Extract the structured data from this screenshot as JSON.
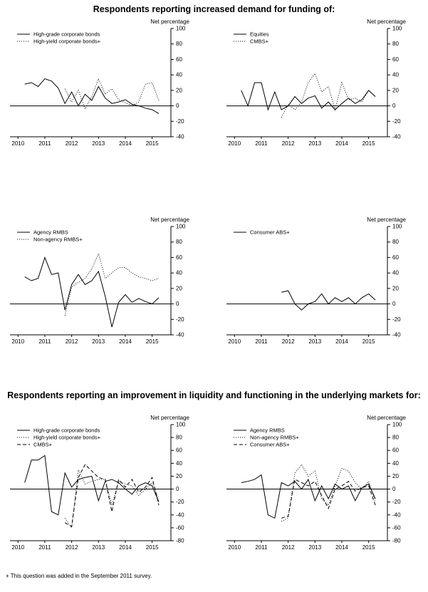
{
  "page": {
    "title_demand": "Respondents reporting increased demand for funding of:",
    "title_liquidity": "Respondents reporting an improvement in liquidity and functioning in the underlying markets for:",
    "footnote": "+ This question was added in the September 2011 survey."
  },
  "chart_data": [
    {
      "type": "line",
      "ylabel": "Net percentage",
      "ylim": [
        -40,
        100
      ],
      "yticks": [
        100,
        80,
        60,
        40,
        20,
        0,
        -20,
        -40
      ],
      "xlim": [
        2009.7,
        2015.7
      ],
      "xticks": [
        2010,
        2011,
        2012,
        2013,
        2014,
        2015
      ],
      "legend_position": "top-left",
      "series": [
        {
          "name": "High-grade corporate bonds",
          "style": "solid",
          "x": [
            2010.25,
            2010.5,
            2010.75,
            2011,
            2011.25,
            2011.5,
            2011.75,
            2012,
            2012.25,
            2012.5,
            2012.75,
            2013,
            2013.25,
            2013.5,
            2013.75,
            2014,
            2014.25,
            2014.5,
            2014.75,
            2015,
            2015.25
          ],
          "y": [
            28,
            30,
            25,
            35,
            32,
            23,
            3,
            18,
            0,
            15,
            7,
            25,
            10,
            3,
            5,
            8,
            2,
            0,
            -3,
            -5,
            -10
          ]
        },
        {
          "name": "High-yield corporate bonds+",
          "style": "dotted",
          "x": [
            2011.75,
            2012,
            2012.25,
            2012.5,
            2012.75,
            2013,
            2013.25,
            2013.5,
            2013.75,
            2014,
            2014.25,
            2014.5,
            2014.75,
            2015,
            2015.25
          ],
          "y": [
            22,
            5,
            20,
            -4,
            12,
            35,
            15,
            22,
            8,
            4,
            0,
            5,
            28,
            30,
            7
          ]
        }
      ]
    },
    {
      "type": "line",
      "ylabel": "Net percentage",
      "ylim": [
        -40,
        100
      ],
      "yticks": [
        100,
        80,
        60,
        40,
        20,
        0,
        -20,
        -40
      ],
      "xlim": [
        2009.7,
        2015.7
      ],
      "xticks": [
        2010,
        2011,
        2012,
        2013,
        2014,
        2015
      ],
      "legend_position": "top-left",
      "series": [
        {
          "name": "Equities",
          "style": "solid",
          "x": [
            2010.25,
            2010.5,
            2010.75,
            2011,
            2011.25,
            2011.5,
            2011.75,
            2012,
            2012.25,
            2012.5,
            2012.75,
            2013,
            2013.25,
            2013.5,
            2013.75,
            2014,
            2014.25,
            2014.5,
            2014.75,
            2015,
            2015.25
          ],
          "y": [
            20,
            0,
            30,
            30,
            -5,
            18,
            -5,
            0,
            12,
            3,
            10,
            13,
            -3,
            5,
            -5,
            3,
            10,
            3,
            8,
            20,
            12
          ]
        },
        {
          "name": "CMBS+",
          "style": "dotted",
          "x": [
            2011.75,
            2012,
            2012.25,
            2012.5,
            2012.75,
            2013,
            2013.25,
            2013.5,
            2013.75,
            2014,
            2014.25,
            2014.5,
            2014.75,
            2015,
            2015.25
          ],
          "y": [
            -15,
            2,
            -5,
            5,
            30,
            42,
            18,
            25,
            -5,
            30,
            8,
            10,
            5,
            20,
            12
          ]
        }
      ]
    },
    {
      "type": "line",
      "ylabel": "Net percentage",
      "ylim": [
        -40,
        100
      ],
      "yticks": [
        100,
        80,
        60,
        40,
        20,
        0,
        -20,
        -40
      ],
      "xlim": [
        2009.7,
        2015.7
      ],
      "xticks": [
        2010,
        2011,
        2012,
        2013,
        2014,
        2015
      ],
      "legend_position": "top-left",
      "series": [
        {
          "name": "Agency RMBS",
          "style": "solid",
          "x": [
            2010.25,
            2010.5,
            2010.75,
            2011,
            2011.25,
            2011.5,
            2011.75,
            2012,
            2012.25,
            2012.5,
            2012.75,
            2013,
            2013.25,
            2013.5,
            2013.75,
            2014,
            2014.25,
            2014.5,
            2014.75,
            2015,
            2015.25
          ],
          "y": [
            35,
            30,
            33,
            60,
            38,
            40,
            -8,
            25,
            38,
            25,
            30,
            42,
            10,
            -30,
            2,
            12,
            2,
            7,
            3,
            0,
            8
          ]
        },
        {
          "name": "Non-agency RMBS+",
          "style": "dotted",
          "x": [
            2011.75,
            2012,
            2012.25,
            2012.5,
            2012.75,
            2013,
            2013.25,
            2013.5,
            2013.75,
            2014,
            2014.25,
            2014.5,
            2014.75,
            2015,
            2015.25
          ],
          "y": [
            -15,
            22,
            28,
            33,
            45,
            65,
            33,
            40,
            47,
            47,
            40,
            35,
            33,
            30,
            33
          ]
        }
      ]
    },
    {
      "type": "line",
      "ylabel": "Net percentage",
      "ylim": [
        -40,
        100
      ],
      "yticks": [
        100,
        80,
        60,
        40,
        20,
        0,
        -20,
        -40
      ],
      "xlim": [
        2009.7,
        2015.7
      ],
      "xticks": [
        2010,
        2011,
        2012,
        2013,
        2014,
        2015
      ],
      "legend_position": "top-left",
      "series": [
        {
          "name": "Consumer ABS+",
          "style": "solid",
          "x": [
            2011.75,
            2012,
            2012.25,
            2012.5,
            2012.75,
            2013,
            2013.25,
            2013.5,
            2013.75,
            2014,
            2014.25,
            2014.5,
            2014.75,
            2015,
            2015.25
          ],
          "y": [
            15,
            17,
            0,
            -8,
            0,
            3,
            13,
            0,
            8,
            3,
            8,
            0,
            8,
            13,
            5
          ]
        }
      ]
    },
    {
      "type": "line",
      "ylabel": "Net percentage",
      "ylim": [
        -80,
        100
      ],
      "yticks": [
        100,
        80,
        60,
        40,
        20,
        0,
        -20,
        -40,
        -60,
        -80
      ],
      "xlim": [
        2009.7,
        2015.7
      ],
      "xticks": [
        2010,
        2011,
        2012,
        2013,
        2014,
        2015
      ],
      "legend_position": "top-left",
      "series": [
        {
          "name": "High-grade corporate bonds",
          "style": "solid",
          "x": [
            2010.25,
            2010.5,
            2010.75,
            2011,
            2011.25,
            2011.5,
            2011.75,
            2012,
            2012.25,
            2012.5,
            2012.75,
            2013,
            2013.25,
            2013.5,
            2013.75,
            2014,
            2014.25,
            2014.5,
            2014.75,
            2015,
            2015.25
          ],
          "y": [
            10,
            45,
            45,
            52,
            -35,
            -40,
            25,
            3,
            15,
            18,
            20,
            -18,
            12,
            15,
            10,
            0,
            -8,
            5,
            10,
            5,
            -20
          ]
        },
        {
          "name": "High-yield corporate bonds+",
          "style": "dotted",
          "x": [
            2011.75,
            2012,
            2012.25,
            2012.5,
            2012.75,
            2013,
            2013.25,
            2013.5,
            2013.75,
            2014,
            2014.25,
            2014.5,
            2014.75,
            2015,
            2015.25
          ],
          "y": [
            -45,
            -60,
            30,
            8,
            12,
            15,
            15,
            -25,
            12,
            8,
            5,
            -10,
            0,
            10,
            -15
          ]
        },
        {
          "name": "CMBS+",
          "style": "dashed",
          "x": [
            2011.75,
            2012,
            2012.25,
            2012.5,
            2012.75,
            2013,
            2013.25,
            2013.5,
            2013.75,
            2014,
            2014.25,
            2014.5,
            2014.75,
            2015,
            2015.25
          ],
          "y": [
            -52,
            -58,
            18,
            38,
            28,
            18,
            15,
            -35,
            15,
            3,
            15,
            -5,
            3,
            18,
            -25
          ]
        }
      ]
    },
    {
      "type": "line",
      "ylabel": "Net percentage",
      "ylim": [
        -80,
        100
      ],
      "yticks": [
        100,
        80,
        60,
        40,
        20,
        0,
        -20,
        -40,
        -60,
        -80
      ],
      "xlim": [
        2009.7,
        2015.7
      ],
      "xticks": [
        2010,
        2011,
        2012,
        2013,
        2014,
        2015
      ],
      "legend_position": "top-left",
      "series": [
        {
          "name": "Agency RMBS",
          "style": "solid",
          "x": [
            2010.25,
            2010.5,
            2010.75,
            2011,
            2011.25,
            2011.5,
            2011.75,
            2012,
            2012.25,
            2012.5,
            2012.75,
            2013,
            2013.25,
            2013.5,
            2013.75,
            2014,
            2014.25,
            2014.5,
            2014.75,
            2015,
            2015.25
          ],
          "y": [
            10,
            12,
            15,
            22,
            -40,
            -45,
            10,
            5,
            12,
            0,
            15,
            -18,
            5,
            -15,
            8,
            0,
            5,
            -18,
            2,
            8,
            -15
          ]
        },
        {
          "name": "Non-agency RMBS+",
          "style": "dotted",
          "x": [
            2011.75,
            2012,
            2012.25,
            2012.5,
            2012.75,
            2013,
            2013.25,
            2013.5,
            2013.75,
            2014,
            2014.25,
            2014.5,
            2014.75,
            2015,
            2015.25
          ],
          "y": [
            -50,
            -45,
            25,
            38,
            20,
            28,
            -15,
            -25,
            5,
            32,
            28,
            10,
            0,
            12,
            -20
          ]
        },
        {
          "name": "Consumer ABS+",
          "style": "dashed",
          "x": [
            2011.75,
            2012,
            2012.25,
            2012.5,
            2012.75,
            2013,
            2013.25,
            2013.5,
            2013.75,
            2014,
            2014.25,
            2014.5,
            2014.75,
            2015,
            2015.25
          ],
          "y": [
            -45,
            -42,
            15,
            10,
            5,
            12,
            -10,
            -30,
            0,
            5,
            12,
            -3,
            2,
            5,
            -25
          ]
        }
      ]
    }
  ]
}
